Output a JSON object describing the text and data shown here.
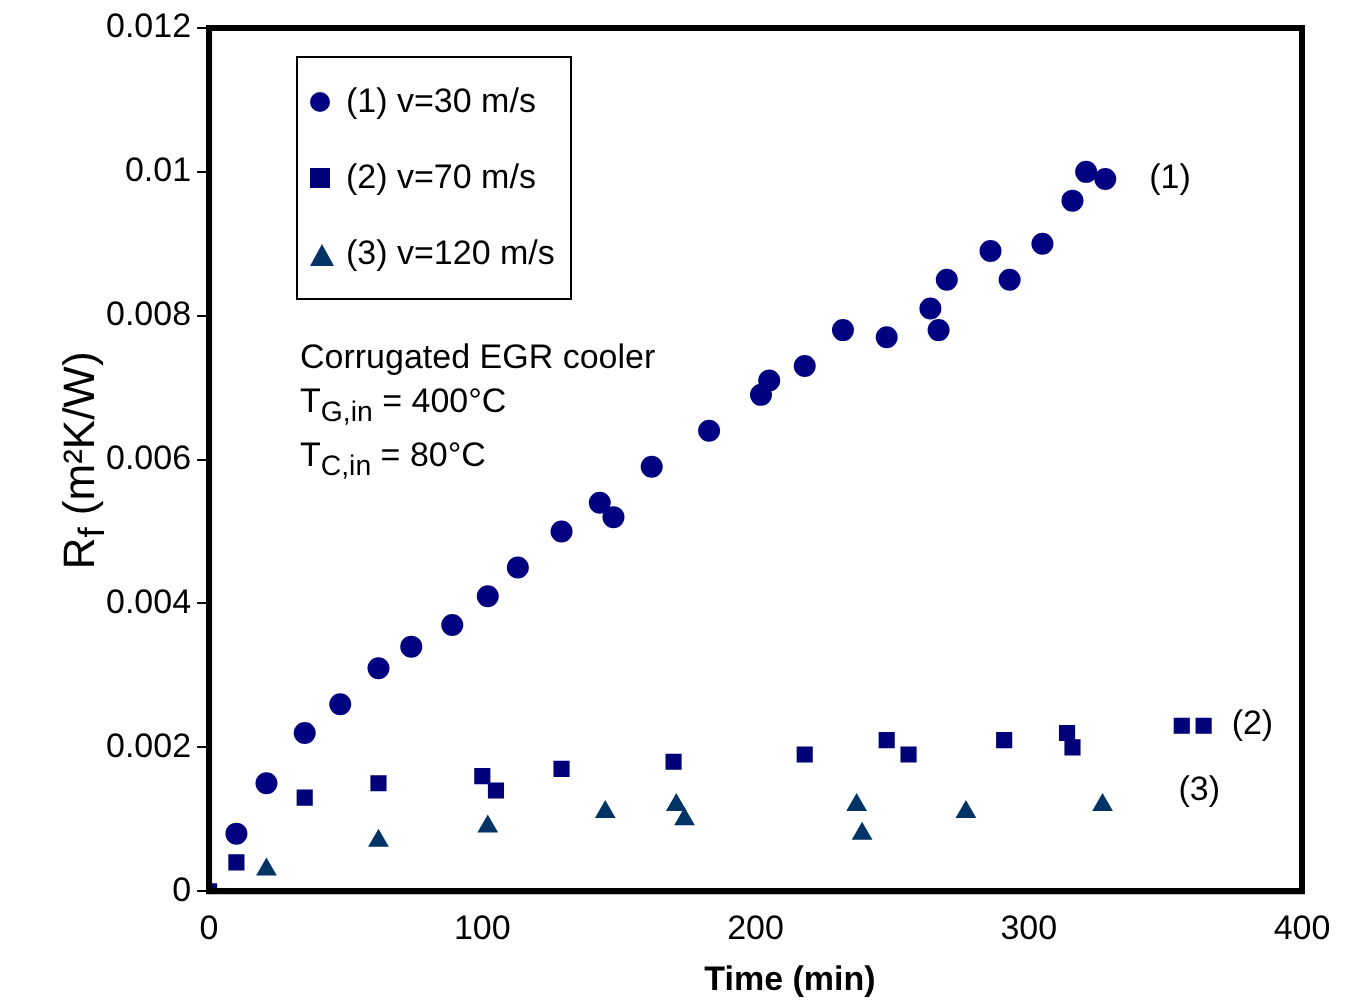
{
  "chart_data": {
    "type": "scatter",
    "xlabel": "Time (min)",
    "ylabel": "R$_{f}$ (m²K/W)",
    "xlim": [
      0,
      400
    ],
    "xticks": [
      0,
      100,
      200,
      300,
      400
    ],
    "ylim": [
      0,
      0.012
    ],
    "yticks": [
      0,
      0.002,
      0.004,
      0.006,
      0.008,
      0.01,
      0.012
    ],
    "grid": false,
    "legend": "top left",
    "series": [
      {
        "name": "(1) v=30 m/s",
        "color": "#000080",
        "marker": "circle",
        "x": [
          10,
          21,
          35,
          48,
          62,
          74,
          89,
          102,
          113,
          129,
          143,
          148,
          162,
          183,
          202,
          205,
          218,
          232,
          248,
          264,
          267,
          270,
          286,
          293,
          305,
          316,
          321,
          328
        ],
        "values": [
          0.0008,
          0.0015,
          0.0022,
          0.0026,
          0.0031,
          0.0034,
          0.0037,
          0.0041,
          0.0045,
          0.005,
          0.0054,
          0.0052,
          0.0059,
          0.0064,
          0.0069,
          0.0071,
          0.0073,
          0.0078,
          0.0077,
          0.0081,
          0.0078,
          0.0085,
          0.0089,
          0.0085,
          0.009,
          0.0096,
          0.01,
          0.0099
        ]
      },
      {
        "name": "(2) v=70 m/s",
        "color": "#000078",
        "marker": "square",
        "x": [
          0,
          10,
          35,
          62,
          100,
          105,
          129,
          170,
          218,
          248,
          256,
          291,
          314,
          316,
          356,
          364
        ],
        "values": [
          0,
          0.0004,
          0.0013,
          0.0015,
          0.0016,
          0.0014,
          0.0017,
          0.0018,
          0.0019,
          0.0021,
          0.0019,
          0.0021,
          0.0022,
          0.002,
          0.0023,
          0.0023
        ]
      },
      {
        "name": "(3) v=120 m/s",
        "color": "#003366",
        "marker": "triangle",
        "x": [
          21,
          62,
          102,
          145,
          171,
          174,
          237,
          239,
          277,
          327
        ],
        "values": [
          0.0003,
          0.0007,
          0.0009,
          0.0011,
          0.0012,
          0.001,
          0.0012,
          0.0008,
          0.0011,
          0.0012
        ]
      }
    ],
    "annotations": [
      "(1)",
      "(2)",
      "(3)",
      "Corrugated EGR cooler",
      "T$_{G,in}$ = 400°C",
      "T$_{C,in}$ = 80°C"
    ]
  }
}
